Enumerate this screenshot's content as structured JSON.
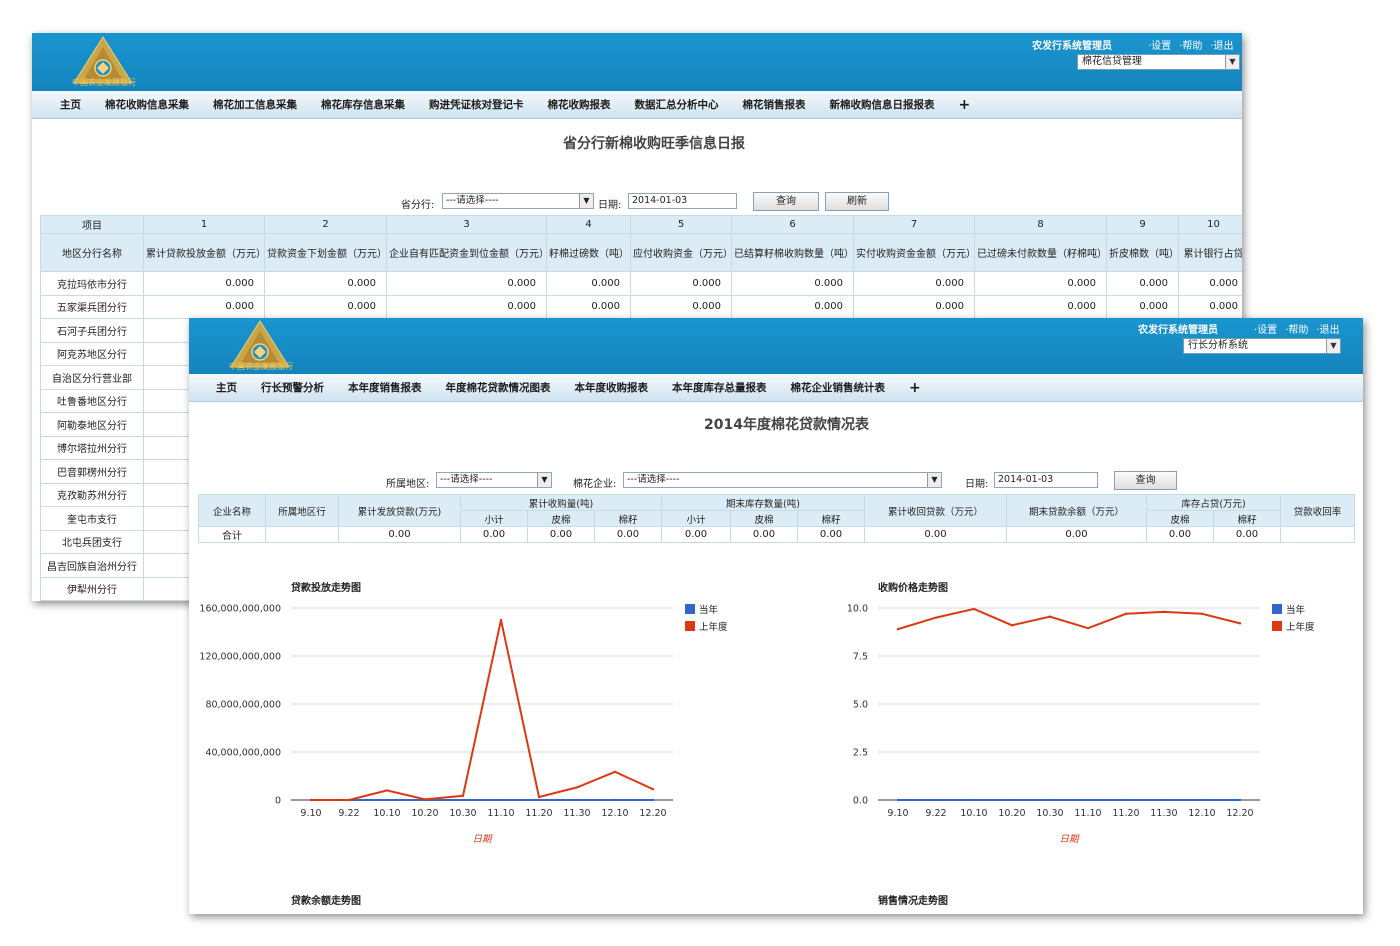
{
  "window1": {
    "user": "农发行系统管理员",
    "links": [
      "·设置",
      "·帮助",
      "·退出"
    ],
    "system_select": "棉花信贷管理",
    "nav": [
      "主页",
      "棉花收购信息采集",
      "棉花加工信息采集",
      "棉花库存信息采集",
      "购进凭证核对登记卡",
      "棉花收购报表",
      "数据汇总分析中心",
      "棉花销售报表",
      "新棉收购信息日报报表",
      "+"
    ],
    "title": "省分行新棉收购旺季信息日报",
    "filter": {
      "branch_label": "省分行:",
      "branch_value": "---请选择----",
      "date_label": "日期:",
      "date_value": "2014-01-03",
      "query_label": "查询",
      "refresh_label": "刷新"
    },
    "table": {
      "row1": [
        "项目",
        "1",
        "2",
        "3",
        "4",
        "5",
        "6",
        "7",
        "8",
        "9",
        "10"
      ],
      "row2": [
        "地区分行名称",
        "累计贷款投放金额（万元）",
        "贷款资金下划金额（万元）",
        "企业自有匹配资金到位金额（万元）",
        "籽棉过磅数（吨）",
        "应付收购资金（万元）",
        "已结算籽棉收购数量（吨）",
        "实付收购资金金额（万元）",
        "已过磅未付款数量（籽棉吨）",
        "折皮棉数（吨）",
        "累计银行占贷"
      ],
      "rows": [
        {
          "name": "克拉玛依市分行",
          "values": [
            "0.000",
            "0.000",
            "0.000",
            "0.000",
            "0.000",
            "0.000",
            "0.000",
            "0.000",
            "0.000",
            "0.000"
          ]
        },
        {
          "name": "五家渠兵团分行",
          "values": [
            "0.000",
            "0.000",
            "0.000",
            "0.000",
            "0.000",
            "0.000",
            "0.000",
            "0.000",
            "0.000",
            "0.000"
          ]
        },
        {
          "name": "石河子兵团分行",
          "values": []
        },
        {
          "name": "阿克苏地区分行",
          "values": []
        },
        {
          "name": "自治区分行营业部",
          "values": []
        },
        {
          "name": "吐鲁番地区分行",
          "values": []
        },
        {
          "name": "阿勒泰地区分行",
          "values": []
        },
        {
          "name": "博尔塔拉州分行",
          "values": []
        },
        {
          "name": "巴音郭楞州分行",
          "values": []
        },
        {
          "name": "克孜勒苏州分行",
          "values": []
        },
        {
          "name": "奎屯市支行",
          "values": []
        },
        {
          "name": "北屯兵团支行",
          "values": []
        },
        {
          "name": "昌吉回族自治州分行",
          "values": []
        },
        {
          "name": "伊犁州分行",
          "values": []
        }
      ]
    }
  },
  "window2": {
    "user": "农发行系统管理员",
    "links": [
      "·设置",
      "·帮助",
      "·退出"
    ],
    "system_select": "行长分析系统",
    "nav": [
      "主页",
      "行长预警分析",
      "本年度销售报表",
      "年度棉花贷款情况图表",
      "本年度收购报表",
      "本年度库存总量报表",
      "棉花企业销售统计表",
      "+"
    ],
    "title": "2014年度棉花贷款情况表",
    "filter": {
      "region_label": "所属地区:",
      "region_value": "---请选择----",
      "company_label": "棉花企业:",
      "company_value": "---请选择----",
      "date_label": "日期:",
      "date_value": "2014-01-03",
      "query_label": "查询"
    },
    "table": {
      "h_company": "企业名称",
      "h_region": "所属地区行",
      "h_loan": "累计发放贷款(万元)",
      "h_purchase": "累计收购量(吨)",
      "h_stock": "期末库存数量(吨)",
      "h_recovered": "累计收回贷款（万元）",
      "h_balance": "期末贷款余额（万元）",
      "h_occupy": "库存占贷(万元)",
      "h_rate": "贷款收回率",
      "sub_total": "小计",
      "sub_lint": "皮棉",
      "sub_seed": "棉籽",
      "total_label": "合计",
      "total_values": [
        "0.00",
        "0.00",
        "0.00",
        "0.00",
        "0.00",
        "0.00",
        "0.00",
        "0.00",
        "0.00",
        "0.00",
        "0.00"
      ]
    },
    "bottom_titles": [
      "贷款余额走势图",
      "销售情况走势图"
    ]
  },
  "chart_data": [
    {
      "type": "line",
      "title": "贷款投放走势图",
      "xlabel": "日期",
      "categories": [
        "9.10",
        "9.22",
        "10.10",
        "10.20",
        "10.30",
        "11.10",
        "11.20",
        "11.30",
        "12.10",
        "12.20"
      ],
      "y_ticks": [
        "0",
        "40,000,000,000",
        "80,000,000,000",
        "120,000,000,000",
        "160,000,000,000"
      ],
      "ylim": [
        0,
        160000000000
      ],
      "legend_position": "right",
      "series": [
        {
          "name": "当年",
          "color": "#3366cc",
          "values": [
            0,
            0,
            0,
            0,
            0,
            0,
            0,
            0,
            0,
            0
          ]
        },
        {
          "name": "上年度",
          "color": "#dc3912",
          "values": [
            0,
            0,
            8000000000,
            500000000,
            3500000000,
            150000000000,
            2500000000,
            10500000000,
            23500000000,
            9000000000
          ]
        }
      ]
    },
    {
      "type": "line",
      "title": "收购价格走势图",
      "xlabel": "日期",
      "categories": [
        "9.10",
        "9.22",
        "10.10",
        "10.20",
        "10.30",
        "11.10",
        "11.20",
        "11.30",
        "12.10",
        "12.20"
      ],
      "y_ticks": [
        "0.0",
        "2.5",
        "5.0",
        "7.5",
        "10.0"
      ],
      "ylim": [
        0,
        10
      ],
      "legend_position": "right",
      "series": [
        {
          "name": "当年",
          "color": "#3366cc",
          "values": [
            0,
            0,
            0,
            0,
            0,
            0,
            0,
            0,
            0,
            0
          ]
        },
        {
          "name": "上年度",
          "color": "#dc3912",
          "values": [
            8.9,
            9.5,
            9.95,
            9.1,
            9.55,
            8.95,
            9.7,
            9.8,
            9.7,
            9.2
          ]
        }
      ]
    }
  ]
}
